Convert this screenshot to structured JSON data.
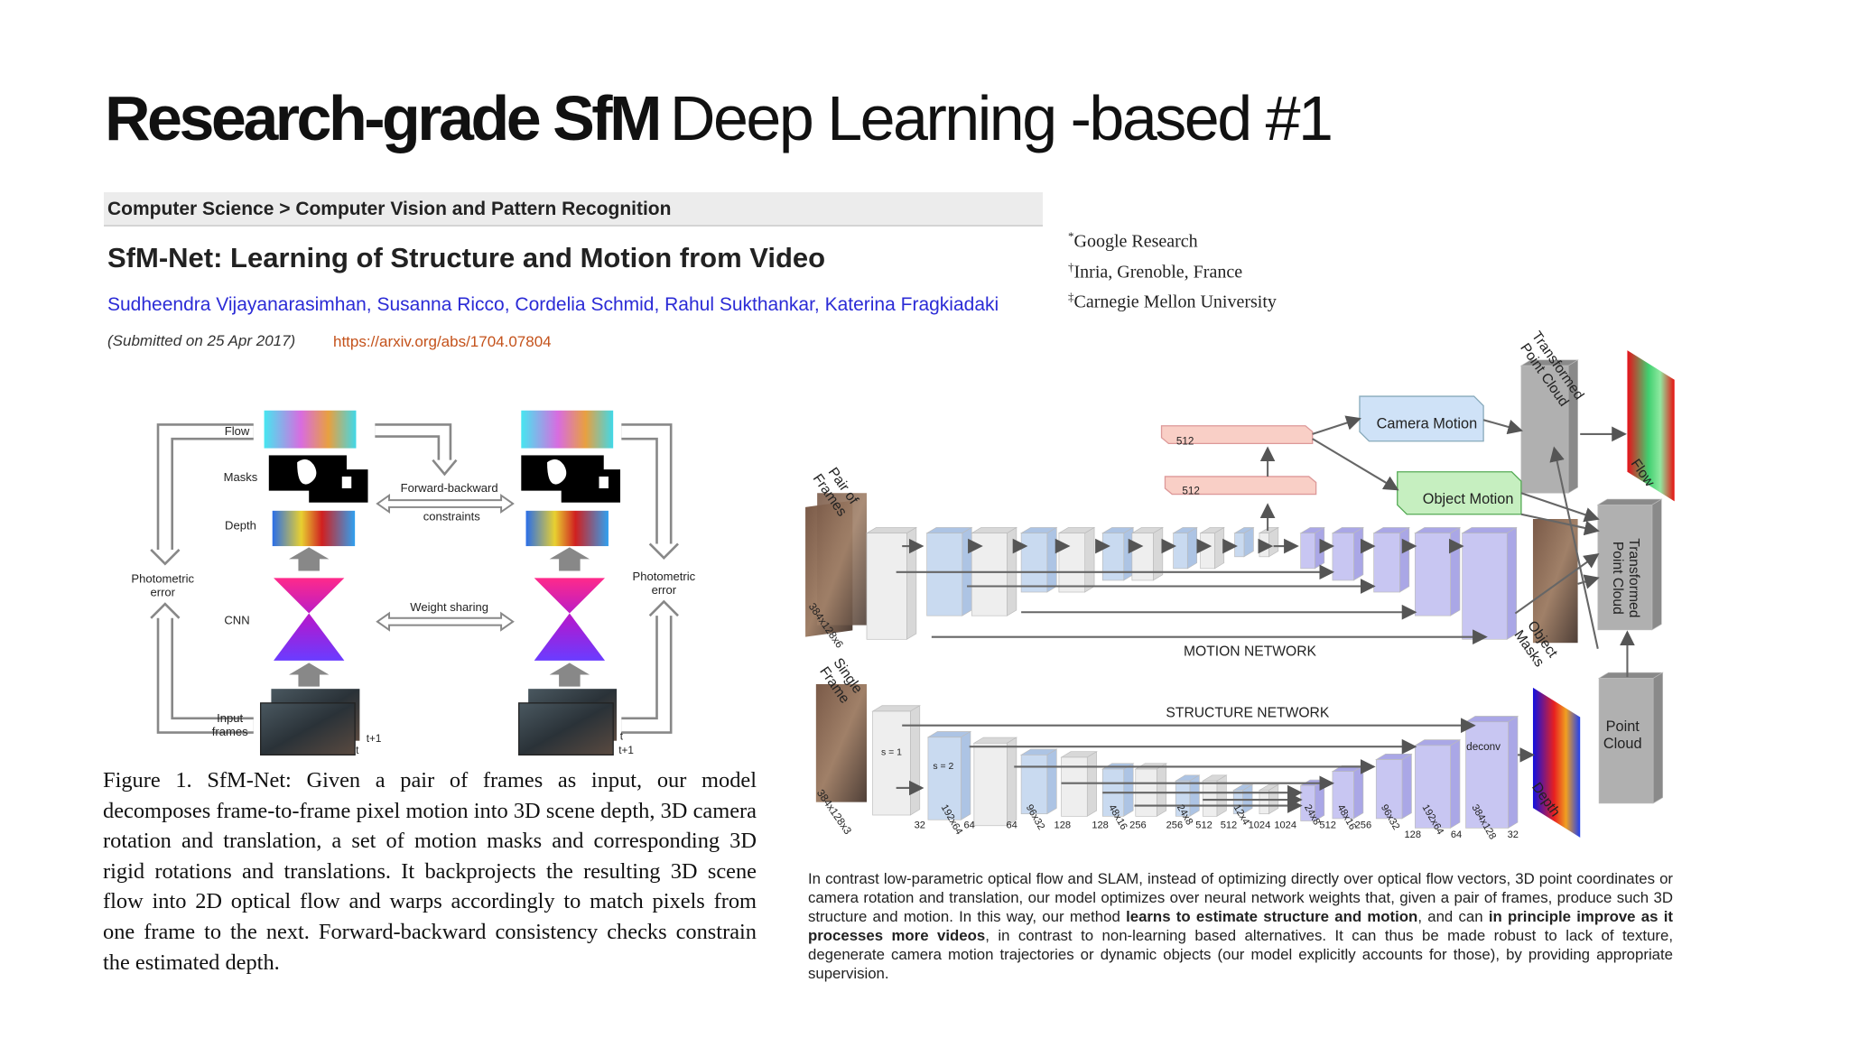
{
  "header": {
    "title_bold": "Research-grade SfM",
    "title_light": "Deep Learning -based #1"
  },
  "paper": {
    "breadcrumb": "Computer Science > Computer Vision and Pattern Recognition",
    "title": "SfM-Net: Learning of Structure and Motion from Video",
    "authors": "Sudheendra Vijayanarasimhan, Susanna Ricco, Cordelia Schmid, Rahul Sukthankar, Katerina Fragkiadaki",
    "submitted": "(Submitted on 25 Apr 2017)",
    "link": "https://arxiv.org/abs/1704.07804",
    "affiliations": [
      {
        "mark": "*",
        "text": "Google Research"
      },
      {
        "mark": "†",
        "text": "Inria, Grenoble, France"
      },
      {
        "mark": "‡",
        "text": "Carnegie Mellon University"
      }
    ]
  },
  "figure1": {
    "labels": {
      "flow": "Flow",
      "masks": "Masks",
      "depth": "Depth",
      "cnn": "CNN",
      "input": "Input\nframes",
      "photometric_left": "Photometric\nerror",
      "photometric_right": "Photometric\nerror",
      "forward_backward": "Forward-backward",
      "constraints": "constraints",
      "weight_sharing": "Weight sharing",
      "t_left": "t",
      "t1_left": "t+1",
      "t_right": "t",
      "t1_right": "t+1"
    },
    "caption": "Figure 1. SfM-Net: Given a pair of frames as input, our model decomposes frame-to-frame pixel motion into 3D scene depth, 3D camera rotation and translation, a set of motion masks and corresponding 3D rigid rotations and translations. It backprojects the resulting 3D scene flow into 2D optical flow and warps accordingly to match pixels from one frame to the next. Forward-backward consistency checks constrain the estimated depth."
  },
  "network": {
    "labels": {
      "fc1": "512",
      "fc2": "512",
      "camera_motion": "Camera Motion",
      "object_motion": "Object Motion",
      "transformed_top": "Transformed\nPoint Cloud",
      "flow": "Flow",
      "pair": "Pair of\nFrames",
      "pair_size": "384x128x6",
      "motion_network": "MOTION NETWORK",
      "object_masks": "Object\nMasks",
      "transformed_mid": "Transformed\nPoint Cloud",
      "single": "Single\nFrame",
      "structure_network": "STRUCTURE NETWORK",
      "s1": "s = 1",
      "s2": "s = 2",
      "deconv": "deconv",
      "point_cloud": "Point\nCloud",
      "depth": "Depth",
      "single_size": "384x128x3"
    },
    "dims": [
      "32",
      "192x64",
      "64",
      "64",
      "96x32",
      "128",
      "128",
      "48x16",
      "256",
      "256",
      "24x8",
      "512",
      "512",
      "12x4",
      "1024",
      "1024",
      "24x8",
      "512",
      "48x16",
      "256",
      "96x32",
      "128",
      "192x64",
      "64",
      "384x128",
      "32"
    ]
  },
  "description": {
    "parts": [
      "In contrast low-parametric optical flow and SLAM, instead of optimizing directly over optical flow vectors, 3D point coordinates or camera rotation and translation, our model optimizes over neural network weights that, given a pair of frames, produce such 3D structure and motion. In this way, our method ",
      "learns to estimate structure and motion",
      ", and can ",
      "in principle improve as it processes more videos",
      ", in contrast to non-learning based alternatives. It can thus be made robust to lack of texture, degenerate camera motion trajectories or dynamic objects (our model explicitly accounts for those), by providing appropriate supervision."
    ]
  }
}
